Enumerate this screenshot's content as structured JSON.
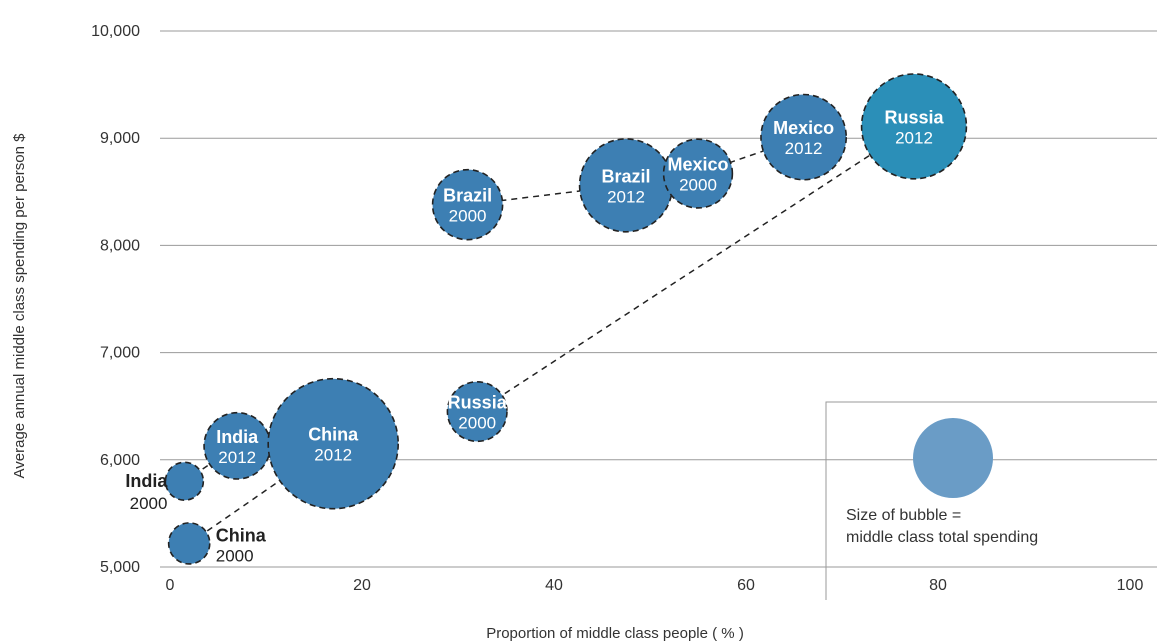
{
  "chart_data": {
    "type": "scatter",
    "xlabel": "Proportion of middle class people ( % )",
    "ylabel": "Average annual middle class spending per person $",
    "xlim": [
      0,
      100
    ],
    "ylim": [
      5000,
      10000
    ],
    "x_ticks": [
      "0",
      "20",
      "40",
      "60",
      "80",
      "100"
    ],
    "y_ticks": [
      "5,000",
      "6,000",
      "7,000",
      "8,000",
      "9,000",
      "10,000"
    ],
    "grid": "horizontal",
    "bubbles": [
      {
        "country": "China",
        "year": "2000",
        "x": 2,
        "y": 5220,
        "size": 1,
        "label": "outside",
        "text_color": "#222222"
      },
      {
        "country": "India",
        "year": "2000",
        "x": 1.5,
        "y": 5800,
        "size": 0.85,
        "label": "outside-left",
        "text_color": "#222222"
      },
      {
        "country": "India",
        "year": "2012",
        "x": 7,
        "y": 6130,
        "size": 2.6,
        "label": "inside",
        "text_color": "#ffffff"
      },
      {
        "country": "China",
        "year": "2012",
        "x": 17,
        "y": 6150,
        "size": 10,
        "label": "inside",
        "text_color": "#ffffff"
      },
      {
        "country": "Russia",
        "year": "2000",
        "x": 32,
        "y": 6450,
        "size": 2.1,
        "label": "inside",
        "text_color": "#ffffff"
      },
      {
        "country": "Brazil",
        "year": "2000",
        "x": 31,
        "y": 8380,
        "size": 2.9,
        "label": "inside",
        "text_color": "#ffffff"
      },
      {
        "country": "Brazil",
        "year": "2012",
        "x": 47.5,
        "y": 8560,
        "size": 5.1,
        "label": "inside",
        "text_color": "#ffffff"
      },
      {
        "country": "Mexico",
        "year": "2000",
        "x": 55,
        "y": 8670,
        "size": 2.8,
        "label": "inside",
        "text_color": "#ffffff"
      },
      {
        "country": "Mexico",
        "year": "2012",
        "x": 66,
        "y": 9010,
        "size": 4.3,
        "label": "inside",
        "text_color": "#ffffff"
      },
      {
        "country": "Russia",
        "year": "2012",
        "x": 77.5,
        "y": 9110,
        "size": 6.5,
        "label": "inside",
        "text_color": "#ffffff"
      }
    ],
    "connections": [
      {
        "from": 0,
        "to": 3
      },
      {
        "from": 1,
        "to": 2
      },
      {
        "from": 4,
        "to": 9
      },
      {
        "from": 5,
        "to": 6
      },
      {
        "from": 7,
        "to": 8
      }
    ],
    "legend": {
      "text_line1": "Size of bubble =",
      "text_line2": "middle class total spending",
      "placement": "bottom-right"
    },
    "colors": {
      "bubble": "#3d7fb3",
      "bubble_russia_2012": "#2b8fb8",
      "legend_bubble": "#6a9cc6",
      "grid": "#9a9a9a"
    }
  }
}
